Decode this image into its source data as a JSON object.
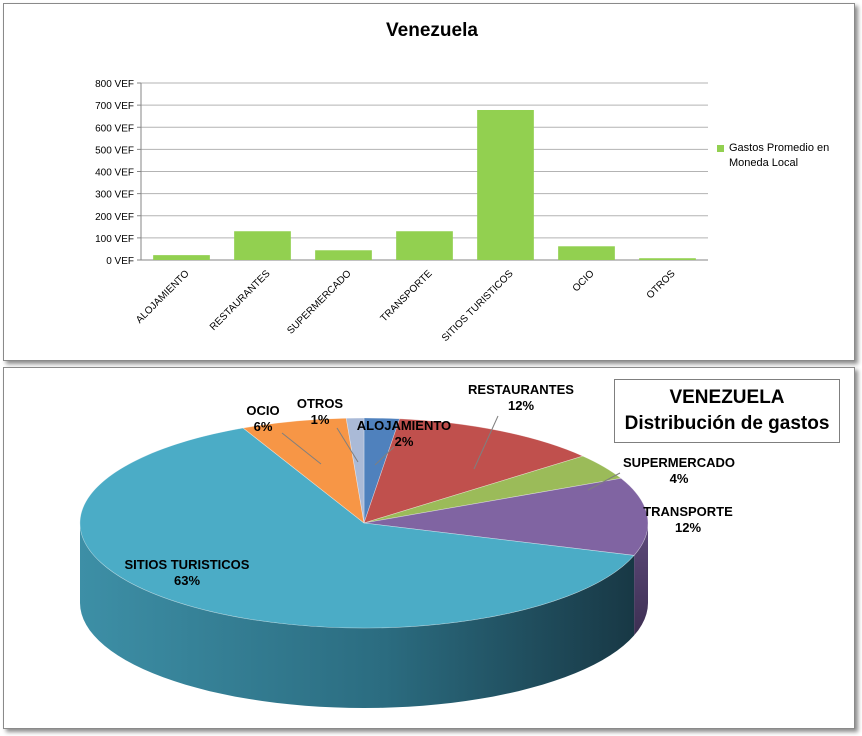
{
  "chart_data": [
    {
      "type": "bar",
      "title": "Venezuela",
      "categories": [
        "ALOJAMIENTO",
        "RESTAURANTES",
        "SUPERMERCADO",
        "TRANSPORTE",
        "SITIOS TURISTICOS",
        "OCIO",
        "OTROS"
      ],
      "series": [
        {
          "name": "Gastos Promedio en Moneda Local",
          "values": [
            22,
            130,
            44,
            130,
            678,
            62,
            8
          ]
        }
      ],
      "ylim": [
        0,
        800
      ],
      "yticks": [
        "0 VEF",
        "100 VEF",
        "200 VEF",
        "300 VEF",
        "400 VEF",
        "500 VEF",
        "600 VEF",
        "700 VEF",
        "800 VEF"
      ],
      "grid": true,
      "legend_position": "right",
      "legend_lines": [
        "Gastos Promedio en",
        "Moneda Local"
      ],
      "bar_color": "#92d050"
    },
    {
      "type": "pie",
      "title_lines": [
        "VENEZUELA",
        "Distribución de gastos"
      ],
      "slices": [
        {
          "label": "ALOJAMIENTO",
          "value": 2,
          "pct_label": "2%",
          "color": "#4f81bd"
        },
        {
          "label": "RESTAURANTES",
          "value": 12,
          "pct_label": "12%",
          "color": "#c0504d"
        },
        {
          "label": "SUPERMERCADO",
          "value": 4,
          "pct_label": "4%",
          "color": "#9bbb59"
        },
        {
          "label": "TRANSPORTE",
          "value": 12,
          "pct_label": "12%",
          "color": "#8064a2"
        },
        {
          "label": "SITIOS TURISTICOS",
          "value": 63,
          "pct_label": "63%",
          "color": "#4bacc6"
        },
        {
          "label": "OCIO",
          "value": 6,
          "pct_label": "6%",
          "color": "#f79646"
        },
        {
          "label": "OTROS",
          "value": 1,
          "pct_label": "1%",
          "color": "#aabad7"
        }
      ],
      "legend_position": "none"
    }
  ]
}
